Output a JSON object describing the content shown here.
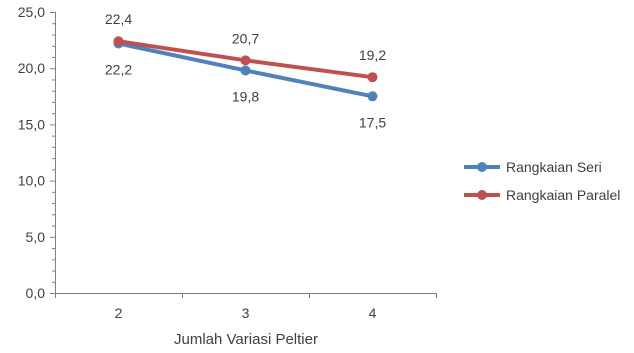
{
  "chart_data": {
    "type": "line",
    "title": "",
    "xlabel": "Jumlah Variasi Peltier",
    "ylabel": "",
    "categories": [
      "2",
      "3",
      "4"
    ],
    "ylim": [
      0,
      25
    ],
    "ytick_labels": [
      "0,0",
      "5,0",
      "10,0",
      "15,0",
      "20,0",
      "25,0"
    ],
    "grid": false,
    "legend_position": "right",
    "series": [
      {
        "name": "Rangkaian Seri",
        "values": [
          22.2,
          19.8,
          17.5
        ],
        "labels": [
          "22,2",
          "19,8",
          "17,5"
        ],
        "color": "#4F81BD"
      },
      {
        "name": "Rangkaian Paralel",
        "values": [
          22.4,
          20.7,
          19.2
        ],
        "labels": [
          "22,4",
          "20,7",
          "19,2"
        ],
        "color": "#C0504D"
      }
    ]
  }
}
